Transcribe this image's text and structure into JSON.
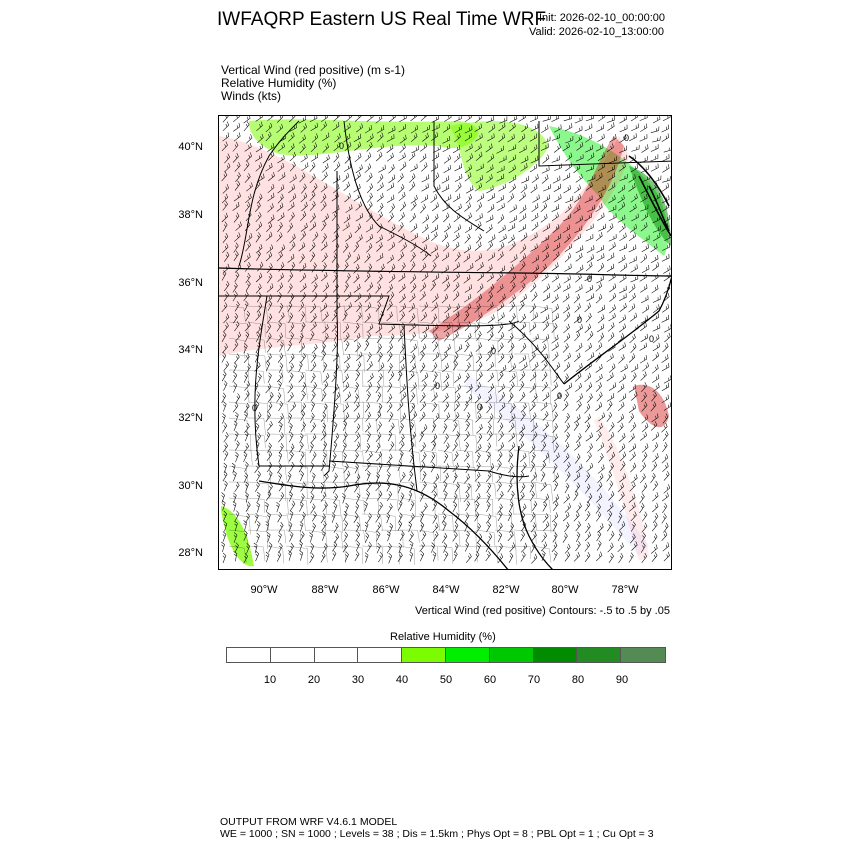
{
  "header": {
    "title": "IWFAQRP Eastern US Real Time WRF",
    "init": "Init: 2026-02-10_00:00:00",
    "valid": "Valid: 2026-02-10_13:00:00"
  },
  "fields": [
    "Vertical Wind (red positive)   (m s-1)",
    "Relative Humidity   (%)",
    "Winds   (kts)"
  ],
  "map": {
    "lat_labels": [
      "40°N",
      "38°N",
      "36°N",
      "34°N",
      "32°N",
      "30°N",
      "28°N"
    ],
    "lon_labels": [
      "90°W",
      "88°W",
      "86°W",
      "84°W",
      "82°W",
      "80°W",
      "78°W"
    ],
    "contour_zero_label": "0"
  },
  "contour_info": "Vertical Wind (red positive) Contours: -.5 to .5 by .05",
  "colorbar": {
    "title": "Relative Humidity  (%)",
    "labels": [
      "10",
      "20",
      "30",
      "40",
      "50",
      "60",
      "70",
      "80",
      "90"
    ],
    "colors": [
      "#ffffff",
      "#ffffff",
      "#ffffff",
      "#ffffff",
      "#7cfc00",
      "#00ee00",
      "#00c800",
      "#008b00",
      "#228b22",
      "#548b54"
    ]
  },
  "footer": {
    "line1": "OUTPUT FROM WRF V4.6.1 MODEL",
    "line2": "WE = 1000 ; SN = 1000 ; Levels = 38 ; Dis = 1.5km ; Phys Opt = 8 ; PBL Opt = 1 ; Cu Opt = 3"
  }
}
